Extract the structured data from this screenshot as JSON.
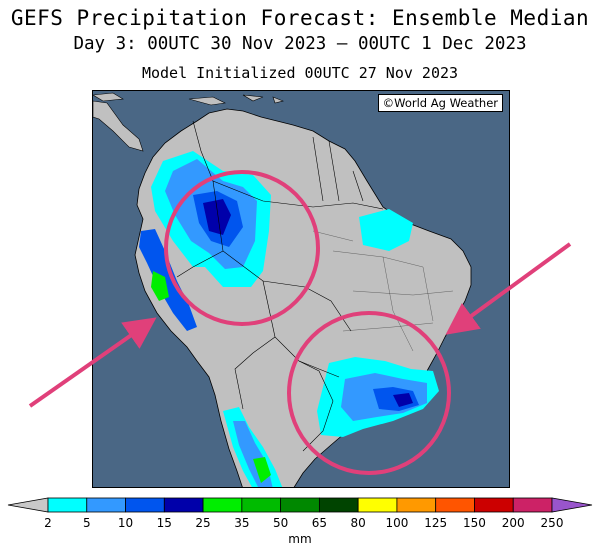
{
  "title": "GEFS Precipitation Forecast: Ensemble Median",
  "subtitle": "Day 3: 00UTC 30 Nov 2023 — 00UTC 1 Dec 2023",
  "init": "Model Initialized 00UTC 27 Nov 2023",
  "credit": "©World Ag Weather",
  "colors": {
    "ocean": "#4a6785",
    "land": "#c0c0c0",
    "highlight": "#e0407a",
    "bins": [
      "#00ffff",
      "#3399ff",
      "#0055ee",
      "#0000aa",
      "#00ee00",
      "#00bb00",
      "#008800",
      "#004400",
      "#ffff00",
      "#ff9900",
      "#ff5500",
      "#cc0000",
      "#cc2266",
      "#ff00ff",
      "#9955cc"
    ]
  },
  "legend": {
    "ticks": [
      "2",
      "5",
      "10",
      "15",
      "25",
      "35",
      "50",
      "65",
      "80",
      "100",
      "125",
      "150",
      "200",
      "250"
    ],
    "unit": "mm"
  }
}
